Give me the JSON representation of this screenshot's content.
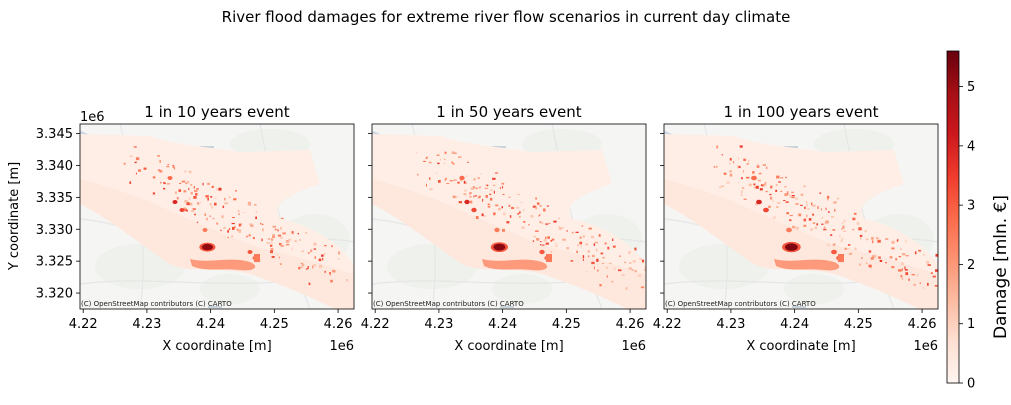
{
  "figure": {
    "suptitle": "River flood damages for extreme river flow scenarios in current day climate",
    "y_exponent": "1e6",
    "x_exponent": "1e6",
    "attribution": "(C) OpenStreetMap contributors (C) CARTO"
  },
  "chart_data": [
    {
      "type": "heatmap",
      "title": "1 in 10 years event",
      "xlabel": "X coordinate [m]",
      "ylabel": "Y coordinate [m]",
      "xlim": [
        4.2195,
        4.2625
      ],
      "ylim": [
        3.3175,
        3.3465
      ],
      "xticks": [
        4.22,
        4.23,
        4.24,
        4.25,
        4.26
      ],
      "yticks": [
        3.32,
        3.325,
        3.33,
        3.335,
        3.34,
        3.345
      ],
      "xtick_labels": [
        "4.22",
        "4.23",
        "4.24",
        "4.25",
        "4.26"
      ],
      "ytick_labels": [
        "3.320",
        "3.325",
        "3.330",
        "3.335",
        "3.340",
        "3.345"
      ],
      "colormap": "Reds",
      "max_damage": 5.4
    },
    {
      "type": "heatmap",
      "title": "1 in 50 years event",
      "xlabel": "X coordinate [m]",
      "ylabel": "",
      "xlim": [
        4.2195,
        4.2625
      ],
      "ylim": [
        3.3175,
        3.3465
      ],
      "xticks": [
        4.22,
        4.23,
        4.24,
        4.25,
        4.26
      ],
      "yticks": [
        3.32,
        3.325,
        3.33,
        3.335,
        3.34,
        3.345
      ],
      "xtick_labels": [
        "4.22",
        "4.23",
        "4.24",
        "4.25",
        "4.26"
      ],
      "ytick_labels": [],
      "colormap": "Reds",
      "max_damage": 5.5
    },
    {
      "type": "heatmap",
      "title": "1 in 100 years event",
      "xlabel": "X coordinate [m]",
      "ylabel": "",
      "xlim": [
        4.2195,
        4.2625
      ],
      "ylim": [
        3.3175,
        3.3465
      ],
      "xticks": [
        4.22,
        4.23,
        4.24,
        4.25,
        4.26
      ],
      "yticks": [
        3.32,
        3.325,
        3.33,
        3.335,
        3.34,
        3.345
      ],
      "xtick_labels": [
        "4.22",
        "4.23",
        "4.24",
        "4.25",
        "4.26"
      ],
      "ytick_labels": [],
      "colormap": "Reds",
      "max_damage": 5.6
    }
  ],
  "colorbar": {
    "label": "Damage [mln. €]",
    "range": [
      0,
      5.6
    ],
    "ticks": [
      0,
      1,
      2,
      3,
      4,
      5
    ],
    "tick_labels": [
      "0",
      "1",
      "2",
      "3",
      "4",
      "5"
    ],
    "colors": [
      "#fff5f0",
      "#fee0d2",
      "#fcbba1",
      "#fc9272",
      "#fb6a4a",
      "#ef3b2c",
      "#cb181d",
      "#a50f15",
      "#67000d"
    ]
  }
}
